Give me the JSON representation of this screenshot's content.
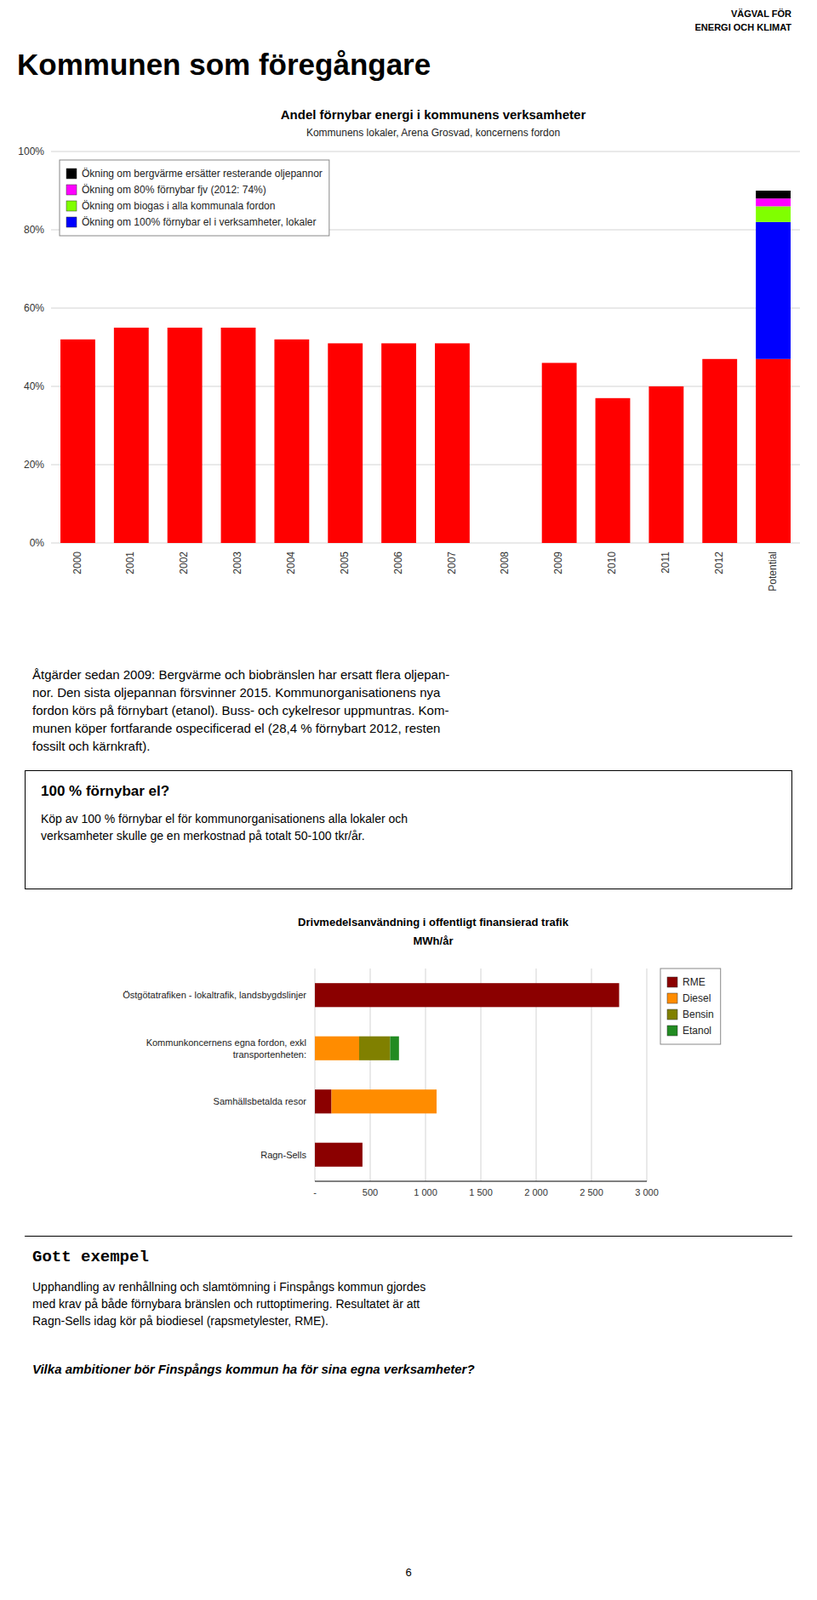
{
  "header": [
    "VÄGVAL FÖR",
    "ENERGI OCH KLIMAT"
  ],
  "title": "Kommunen som föregångare",
  "text": [
    "Åtgärder sedan 2009: Bergvärme och biobränslen har ersatt flera oljepan-",
    "nor. Den sista oljepannan försvinner 2015. Kommunorganisationens nya",
    "fordon körs på förnybart (etanol). Buss- och cykelresor uppmuntras. Kom-",
    "munen köper fortfarande ospecificerad el (28,4 % förnybart 2012, resten",
    "fossilt och kärnkraft)."
  ],
  "box": {
    "title": "100 % förnybar el?",
    "text": [
      "Köp av 100 % förnybar el för kommunorganisationens alla lokaler och",
      "verksamheter skulle ge en merkostnad på totalt 50-100 tkr/år."
    ]
  },
  "example": {
    "title": "Gott exempel",
    "text": [
      "Upphandling av renhållning och slamtömning i Finspångs kommun gjordes",
      "med krav på både förnybara bränslen och ruttoptimering. Resultatet är att",
      "Ragn-Sells idag kör på biodiesel (rapsmetylester, RME)."
    ]
  },
  "question": "Vilka ambitioner bör Finspångs kommun ha för sina egna verksamheter?",
  "page_number": "6",
  "chart_data": [
    {
      "type": "bar",
      "title": "Andel förnybar energi i kommunens verksamheter",
      "subtitle": "Kommunens lokaler, Arena Grosvad, koncernens fordon",
      "categories": [
        "2000",
        "2001",
        "2002",
        "2003",
        "2004",
        "2005",
        "2006",
        "2007",
        "2008",
        "2009",
        "2010",
        "2011",
        "2012",
        "Potential"
      ],
      "series": [
        {
          "color": "#FF0000",
          "values": [
            52,
            55,
            55,
            55,
            52,
            51,
            51,
            51,
            0,
            46,
            37,
            40,
            47,
            47
          ]
        },
        {
          "name": "Ökning om 100% förnybar el i verksamheter, lokaler",
          "color": "#0000FF",
          "values": [
            0,
            0,
            0,
            0,
            0,
            0,
            0,
            0,
            0,
            0,
            0,
            0,
            0,
            35
          ]
        },
        {
          "name": "Ökning om biogas i alla kommunala fordon",
          "color": "#80FF00",
          "values": [
            0,
            0,
            0,
            0,
            0,
            0,
            0,
            0,
            0,
            0,
            0,
            0,
            0,
            4
          ]
        },
        {
          "name": "Ökning om 80% förnybar fjv (2012: 74%)",
          "color": "#FF00FF",
          "values": [
            0,
            0,
            0,
            0,
            0,
            0,
            0,
            0,
            0,
            0,
            0,
            0,
            0,
            2
          ]
        },
        {
          "name": "Ökning om bergvärme ersätter resterande oljepannor",
          "color": "#000000",
          "values": [
            0,
            0,
            0,
            0,
            0,
            0,
            0,
            0,
            0,
            0,
            0,
            0,
            0,
            2
          ]
        }
      ],
      "ylim": [
        0,
        100
      ],
      "yticks": [
        {
          "value": 0,
          "label": "0%"
        },
        {
          "value": 20,
          "label": "20%"
        },
        {
          "value": 40,
          "label": "40%"
        },
        {
          "value": 60,
          "label": "60%"
        },
        {
          "value": 80,
          "label": "80%"
        },
        {
          "value": 100,
          "label": "100%"
        }
      ],
      "grid": true,
      "stacked": true,
      "legend": "upper left"
    },
    {
      "type": "bar",
      "orientation": "horizontal",
      "title": "Drivmedelsanvändning i offentligt finansierad trafik",
      "subtitle": "MWh/år",
      "categories": [
        "Ragn-Sells",
        "Samhällsbetalda resor",
        "Kommunkoncernens egna fordon, exkl\ntransportenheten:",
        "Östgötatrafiken - lokaltrafik, landsbygdslinjer"
      ],
      "series": [
        {
          "name": "RME",
          "color": "#8B0000",
          "values": [
            430,
            150,
            0,
            2750
          ]
        },
        {
          "name": "Diesel",
          "color": "#FF8C00",
          "values": [
            0,
            950,
            400,
            0
          ]
        },
        {
          "name": "Bensin",
          "color": "#808000",
          "values": [
            0,
            0,
            280,
            0
          ]
        },
        {
          "name": "Etanol",
          "color": "#228B22",
          "values": [
            0,
            0,
            80,
            0
          ]
        }
      ],
      "xlim": [
        0,
        3000
      ],
      "xticks": [
        {
          "value": 0,
          "label": "-"
        },
        500,
        {
          "value": 1000,
          "label": "1 000"
        },
        {
          "value": 1500,
          "label": "1 500"
        },
        {
          "value": 2000,
          "label": "2 000"
        },
        {
          "value": 2500,
          "label": "2 500"
        },
        {
          "value": 3000,
          "label": "3 000"
        }
      ],
      "grid": true,
      "stacked": true,
      "legend": "upper right"
    }
  ]
}
